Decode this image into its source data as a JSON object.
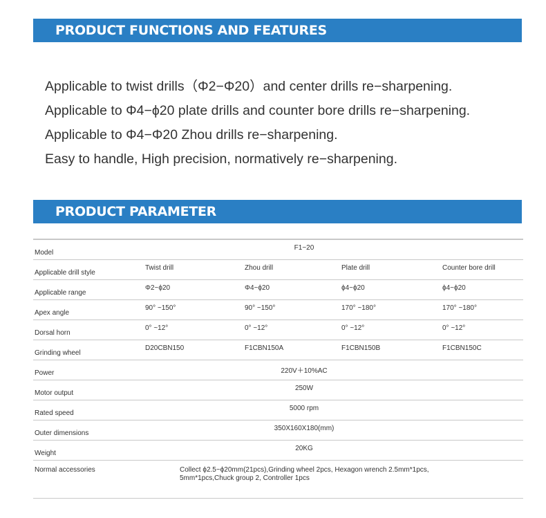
{
  "sections": {
    "features_title": "PRODUCT FUNCTIONS AND FEATURES",
    "parameter_title": "PRODUCT PARAMETER"
  },
  "features": [
    "Applicable to twist drills（Φ2−Φ20）and center drills re−sharpening.",
    "Applicable to Φ4−ϕ20 plate drills and counter bore drills re−sharpening.",
    "Applicable to Φ4−Φ20 Zhou drills re−sharpening.",
    "Easy to handle, High precision, normatively re−sharpening."
  ],
  "accent": "#2a7fc4",
  "table": {
    "model": {
      "label": "Model",
      "value": "F1−20"
    },
    "multi": [
      {
        "label": "Applicable drill style",
        "values": [
          "Twist drill",
          "Zhou drill",
          "Plate drill",
          "Counter bore drill"
        ]
      },
      {
        "label": "Applicable range",
        "values": [
          "Φ2~ϕ20",
          "Φ4~ϕ20",
          "ϕ4~ϕ20",
          "ϕ4~ϕ20"
        ]
      },
      {
        "label": "Apex angle",
        "values": [
          "90° ~150°",
          "90° ~150°",
          "170° ~180°",
          "170° ~180°"
        ]
      },
      {
        "label": "Dorsal horn",
        "values": [
          "0° ~12°",
          "0° ~12°",
          "0° ~12°",
          "0° ~12°"
        ]
      },
      {
        "label": "Grinding wheel",
        "values": [
          "D20CBN150",
          "F1CBN150A",
          "F1CBN150B",
          "F1CBN150C"
        ]
      }
    ],
    "single": [
      {
        "label": "Power",
        "value": "220V＋10%AC"
      },
      {
        "label": "Motor output",
        "value": "250W"
      },
      {
        "label": "Rated speed",
        "value": "5000 rpm"
      },
      {
        "label": "Outer dimensions",
        "value": "350X160X180(mm)"
      },
      {
        "label": "Weight",
        "value": "20KG"
      }
    ],
    "accessories": {
      "label": "Normal accessories",
      "line1": "Collect ϕ2.5~ϕ20mm(21pcs),Grinding wheel 2pcs, Hexagon wrench 2.5mm*1pcs,",
      "line2": "5mm*1pcs,Chuck group 2, Controller 1pcs"
    }
  }
}
